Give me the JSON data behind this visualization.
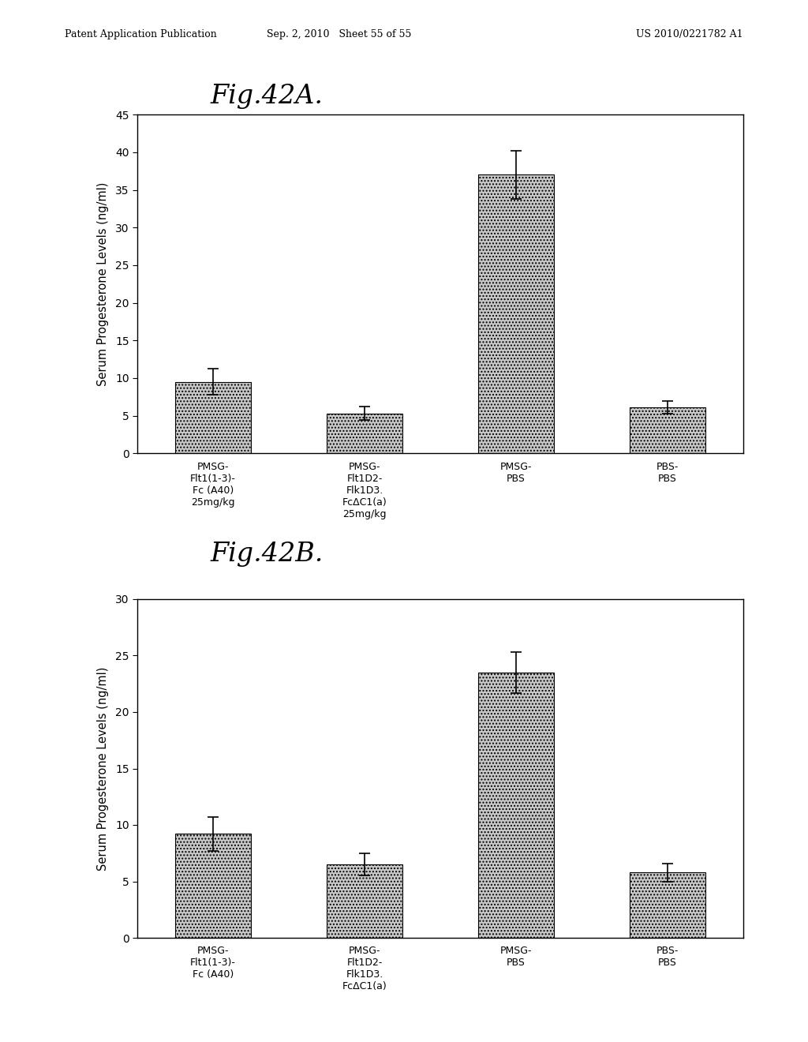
{
  "figA": {
    "title": "Fig.42A.",
    "ylabel": "Serum Progesterone Levels (ng/ml)",
    "ylim": [
      0,
      45
    ],
    "yticks": [
      0,
      5,
      10,
      15,
      20,
      25,
      30,
      35,
      40,
      45
    ],
    "categories": [
      "PMSG-\nFlt1(1-3)-\nFc (A40)\n25mg/kg",
      "PMSG-\nFlt1D2-\nFlk1D3.\nFcΔC1(a)\n25mg/kg",
      "PMSG-\nPBS",
      "PBS-\nPBS"
    ],
    "values": [
      9.5,
      5.3,
      37.0,
      6.1
    ],
    "errors": [
      1.7,
      0.9,
      3.2,
      0.8
    ],
    "bar_color": "#c8c8c8",
    "bar_hatch": "....",
    "bar_width": 0.5
  },
  "figB": {
    "title": "Fig.42B.",
    "ylabel": "Serum Progesterone Levels (ng/ml)",
    "ylim": [
      0,
      30
    ],
    "yticks": [
      0,
      5,
      10,
      15,
      20,
      25,
      30
    ],
    "categories": [
      "PMSG-\nFlt1(1-3)-\nFc (A40)",
      "PMSG-\nFlt1D2-\nFlk1D3.\nFcΔC1(a)",
      "PMSG-\nPBS",
      "PBS-\nPBS"
    ],
    "values": [
      9.2,
      6.5,
      23.5,
      5.8
    ],
    "errors": [
      1.5,
      1.0,
      1.8,
      0.8
    ],
    "bar_color": "#c8c8c8",
    "bar_hatch": "....",
    "bar_width": 0.5
  },
  "header_left": "Patent Application Publication",
  "header_mid": "Sep. 2, 2010   Sheet 55 of 55",
  "header_right": "US 2010/0221782 A1",
  "background_color": "#ffffff",
  "text_color": "#000000"
}
